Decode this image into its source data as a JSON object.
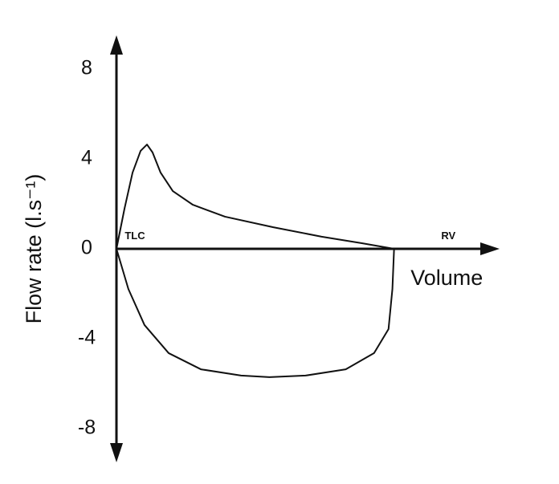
{
  "chart_data": {
    "type": "line",
    "y_label": "Flow rate (l.s⁻¹)",
    "xlim": [
      0,
      13.8
    ],
    "ylim": [
      -9.5,
      9.5
    ],
    "yticks": [
      8,
      4,
      0,
      -4,
      -8
    ],
    "grid": false,
    "annotations": [
      {
        "text": "TLC",
        "x": 0.3,
        "y": 0.55,
        "style": "small"
      },
      {
        "text": "RV",
        "x": 11.7,
        "y": 0.55,
        "style": "small"
      },
      {
        "text": "Volume",
        "x": 13.2,
        "y": -1.35,
        "style": "big"
      }
    ],
    "series": [
      {
        "color": "#111111",
        "x": [
          0,
          0.29,
          0.58,
          0.87,
          1.1,
          1.3,
          1.59,
          2.03,
          2.75,
          3.91,
          5.65,
          7.39,
          8.84,
          10
        ],
        "values": [
          0,
          1.79,
          3.39,
          4.36,
          4.64,
          4.29,
          3.39,
          2.57,
          1.96,
          1.43,
          0.96,
          0.54,
          0.25,
          0
        ]
      },
      {
        "color": "#111111",
        "x": [
          0,
          0.43,
          1.01,
          1.88,
          3.04,
          4.49,
          5.51,
          6.81,
          8.26,
          9.28,
          9.8,
          9.94,
          10
        ],
        "values": [
          0,
          -1.79,
          -3.39,
          -4.64,
          -5.36,
          -5.64,
          -5.71,
          -5.64,
          -5.36,
          -4.64,
          -3.57,
          -1.79,
          0
        ]
      }
    ]
  }
}
